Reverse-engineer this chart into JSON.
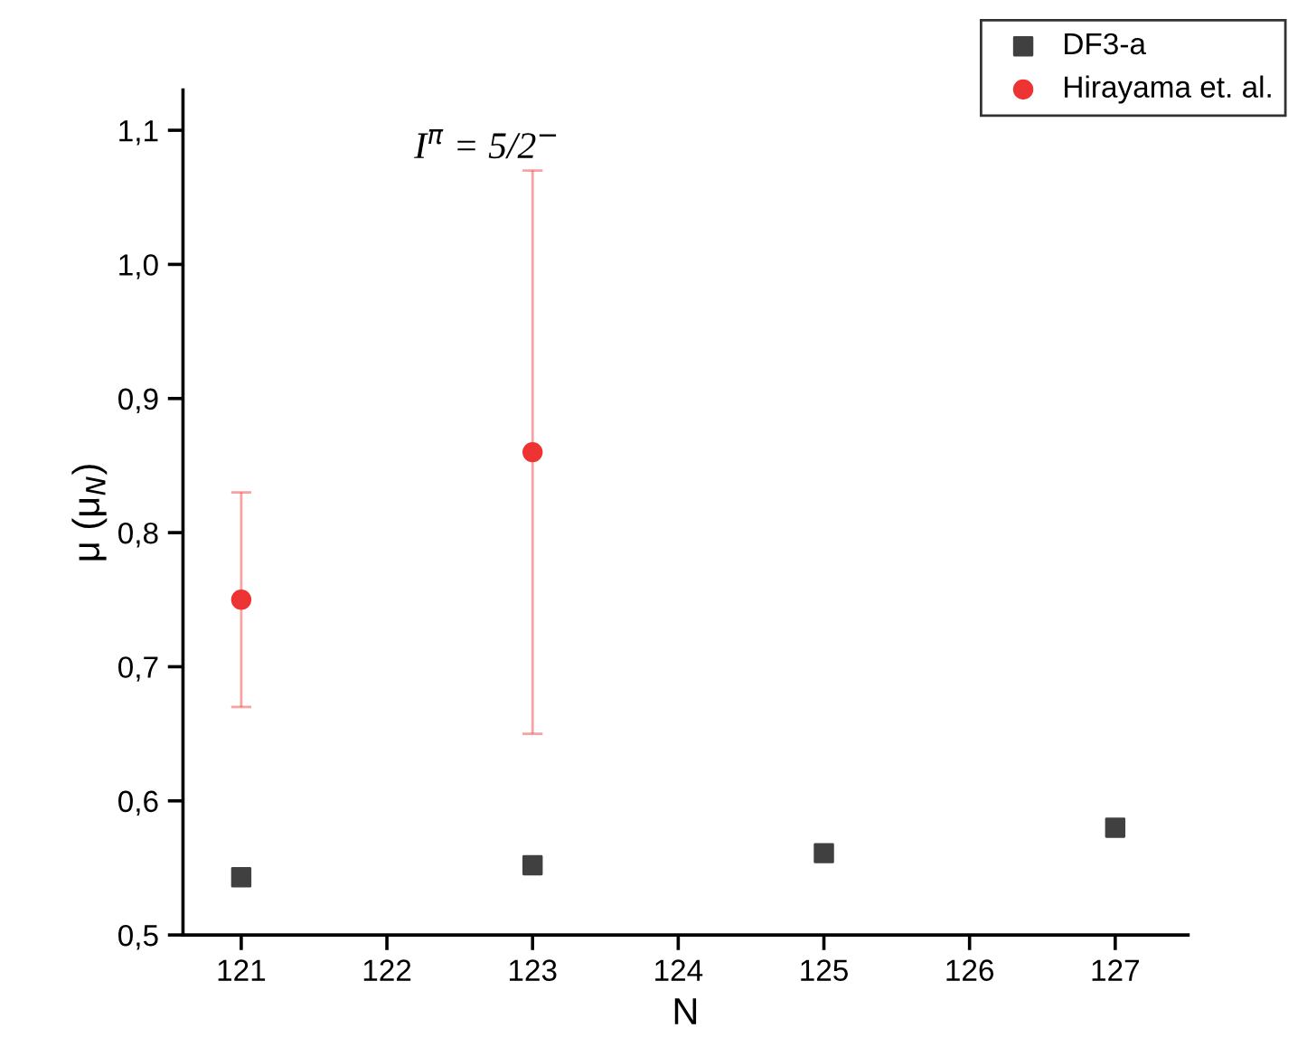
{
  "chart_data": {
    "type": "scatter",
    "xlabel": "N",
    "ylabel": "μ (μ$_{N}$)",
    "x": [
      121,
      123,
      125,
      127
    ],
    "series": [
      {
        "name": "DF3-a",
        "color": "#404040",
        "marker": "square",
        "values": [
          0.543,
          0.552,
          0.561,
          0.58
        ]
      },
      {
        "name": "Hirayama et. al.",
        "color": "#ee3333",
        "marker": "circle",
        "x": [
          121,
          123
        ],
        "values": [
          0.75,
          0.86
        ],
        "errors": [
          [
            0.67,
            0.83
          ],
          [
            0.65,
            1.07
          ]
        ]
      }
    ],
    "annotations": [
      "I$^{π}$ = 5/2$^{−}$"
    ],
    "xlim": [
      120.6,
      127.5
    ],
    "xticks": [
      121,
      122,
      123,
      124,
      125,
      126,
      127
    ],
    "ylim": [
      0.5,
      1.13
    ],
    "yticks": [
      {
        "value": 0.5,
        "label": "0,5"
      },
      {
        "value": 0.6,
        "label": "0,6"
      },
      {
        "value": 0.7,
        "label": "0,7"
      },
      {
        "value": 0.8,
        "label": "0,8"
      },
      {
        "value": 0.9,
        "label": "0,9"
      },
      {
        "value": 1.0,
        "label": "1,0"
      },
      {
        "value": 1.1,
        "label": "1,1"
      }
    ],
    "grid": false,
    "legend": "top right"
  }
}
